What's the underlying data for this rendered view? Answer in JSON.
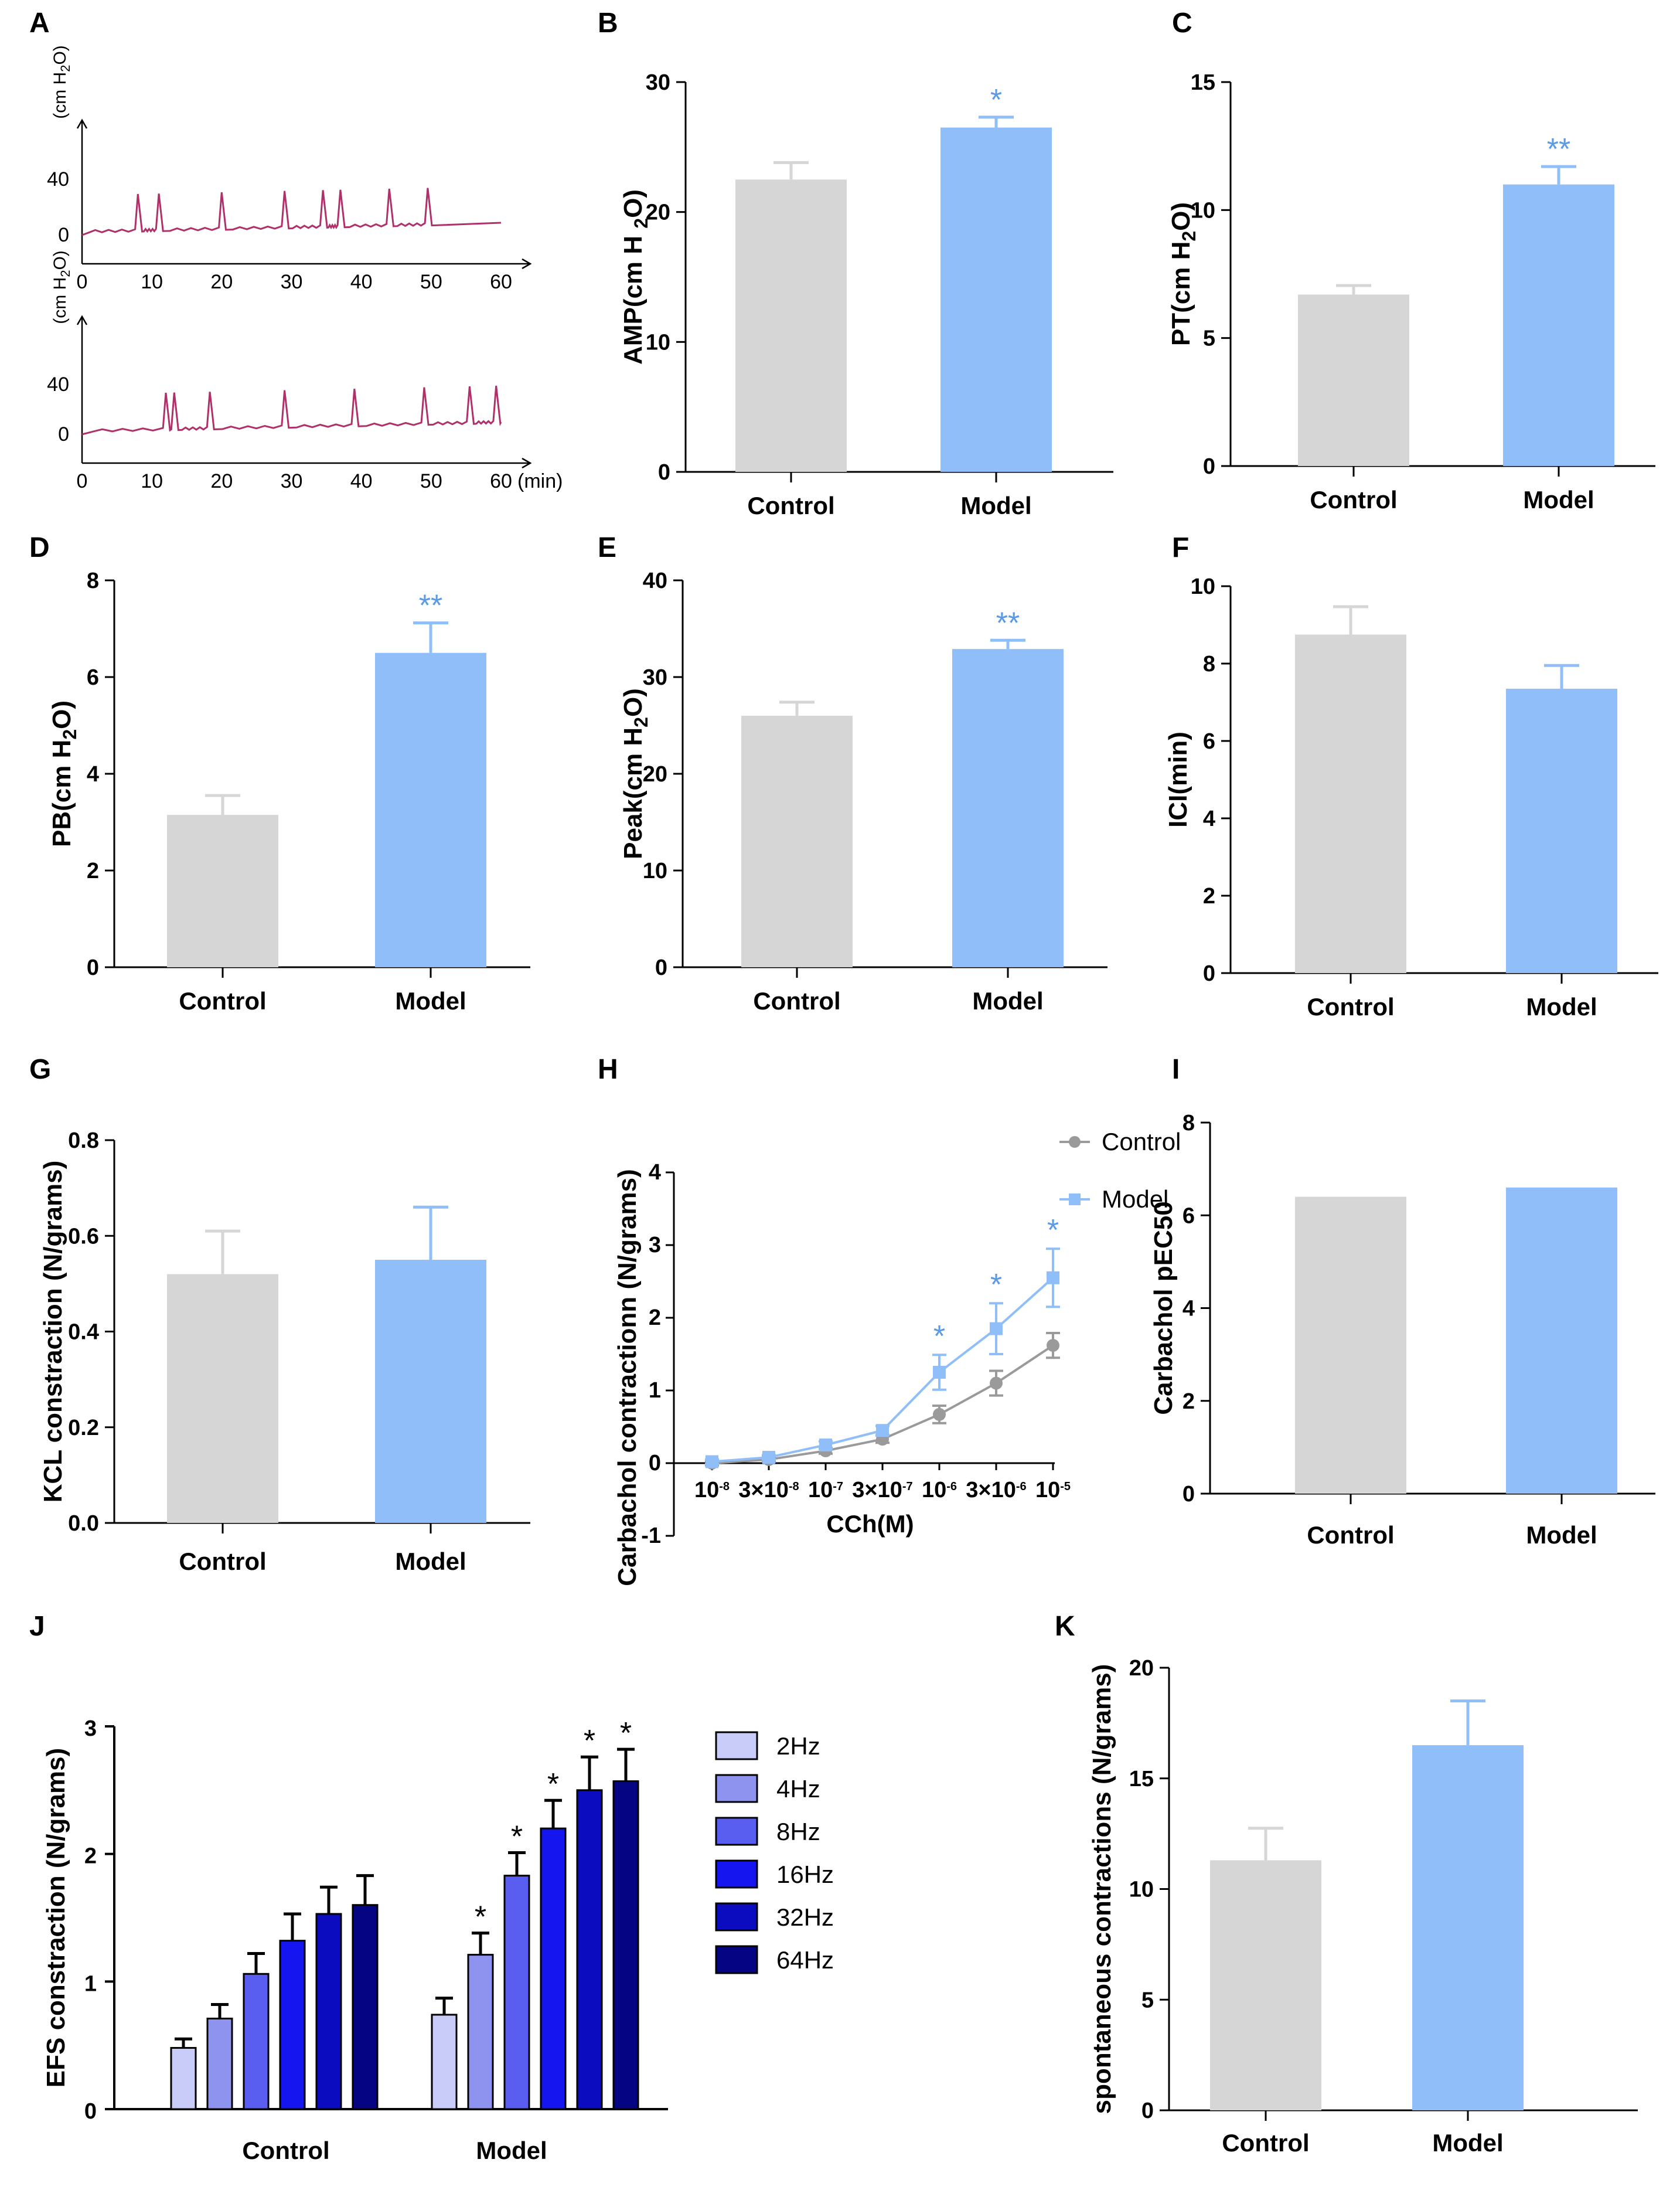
{
  "panel_labels": [
    "A",
    "B",
    "C",
    "D",
    "E",
    "F",
    "G",
    "H",
    "I",
    "J",
    "K"
  ],
  "colors": {
    "control": "#d6d6d6",
    "model": "#8fbef8",
    "sig": "#5b9be6",
    "trace": "#b0306a",
    "h_control": "#9a9a9a",
    "h_model": "#8fbef8",
    "freq": [
      "#c9cbf9",
      "#8f93f0",
      "#5a5ef0",
      "#1515f0",
      "#0b0bbf",
      "#050583"
    ]
  },
  "chart_data": [
    {
      "id": "A",
      "type": "line",
      "title": "",
      "ylabel": "(cm H2O)",
      "ylabel_parts": [
        "(cm H",
        "2",
        "O)"
      ],
      "yticks": [
        "40",
        "0"
      ],
      "xticks": [
        "0",
        "10",
        "20",
        "30",
        "40",
        "50",
        "60"
      ],
      "xunit": "(min)",
      "traces": [
        {
          "name": "top",
          "spikes_min": [
            8,
            11,
            20,
            29,
            34.5,
            37,
            44,
            49.5
          ]
        },
        {
          "name": "bottom",
          "spikes_min": [
            12,
            13.2,
            18.3,
            29,
            39,
            49,
            55.5,
            59.3
          ]
        }
      ]
    },
    {
      "id": "B",
      "type": "bar",
      "categories": [
        "Control",
        "Model"
      ],
      "values": [
        22.5,
        26.5
      ],
      "errors": [
        1.3,
        0.8
      ],
      "sig": [
        "",
        "*"
      ],
      "ylabel": "AMP(cm H 2O)",
      "ylabel_parts": [
        "AMP(cm H ",
        "2",
        "O)"
      ],
      "ylim": [
        0,
        30
      ],
      "yticks": [
        "0",
        "10",
        "20",
        "30"
      ]
    },
    {
      "id": "C",
      "type": "bar",
      "categories": [
        "Control",
        "Model"
      ],
      "values": [
        6.7,
        11.0
      ],
      "errors": [
        0.35,
        0.7
      ],
      "sig": [
        "",
        "**"
      ],
      "ylabel": "PT(cm H2O)",
      "ylabel_parts": [
        "PT(cm H",
        "2",
        "O)"
      ],
      "ylim": [
        0,
        15
      ],
      "yticks": [
        "0",
        "5",
        "10",
        "15"
      ]
    },
    {
      "id": "D",
      "type": "bar",
      "categories": [
        "Control",
        "Model"
      ],
      "values": [
        3.15,
        6.5
      ],
      "errors": [
        0.4,
        0.62
      ],
      "sig": [
        "",
        "**"
      ],
      "ylabel": "PB(cm H2O)",
      "ylabel_parts": [
        "PB(cm H",
        "2",
        "O)"
      ],
      "ylim": [
        0,
        8
      ],
      "yticks": [
        "0",
        "2",
        "4",
        "6",
        "8"
      ]
    },
    {
      "id": "E",
      "type": "bar",
      "categories": [
        "Control",
        "Model"
      ],
      "values": [
        26.0,
        32.9
      ],
      "errors": [
        1.4,
        0.9
      ],
      "sig": [
        "",
        "**"
      ],
      "ylabel": "Peak(cm H2O)",
      "ylabel_parts": [
        "Peak(cm H",
        "2",
        "O)"
      ],
      "ylim": [
        0,
        40
      ],
      "yticks": [
        "0",
        "10",
        "20",
        "30",
        "40"
      ]
    },
    {
      "id": "F",
      "type": "bar",
      "categories": [
        "Control",
        "Model"
      ],
      "values": [
        8.75,
        7.35
      ],
      "errors": [
        0.72,
        0.6
      ],
      "sig": [
        "",
        ""
      ],
      "ylabel": "ICI(min)",
      "ylabel_parts": [
        "ICI(min)",
        "",
        ""
      ],
      "ylim": [
        0,
        10
      ],
      "yticks": [
        "0",
        "2",
        "4",
        "6",
        "8",
        "10"
      ]
    },
    {
      "id": "G",
      "type": "bar",
      "categories": [
        "Control",
        "Model"
      ],
      "values": [
        0.52,
        0.55
      ],
      "errors": [
        0.09,
        0.11
      ],
      "sig": [
        "",
        ""
      ],
      "ylabel": "KCL constraction (N/grams)",
      "ylabel_parts": [
        "KCL constraction (N/grams)",
        "",
        ""
      ],
      "ylim": [
        0,
        0.8
      ],
      "yticks": [
        "0.0",
        "0.2",
        "0.4",
        "0.6",
        "0.8"
      ]
    },
    {
      "id": "H",
      "type": "line",
      "x": [
        "10-8",
        "3×10-8",
        "10-7",
        "3×10-7",
        "10-6",
        "3×10-6",
        "10-5"
      ],
      "x_parts": [
        [
          "10",
          "-8"
        ],
        [
          "3×10",
          "-8"
        ],
        [
          "10",
          "-7"
        ],
        [
          "3×10",
          "-7"
        ],
        [
          "10",
          "-6"
        ],
        [
          "3×10",
          "-6"
        ],
        [
          "10",
          "-5"
        ]
      ],
      "series": [
        {
          "name": "Control",
          "values": [
            0.0,
            0.05,
            0.17,
            0.33,
            0.67,
            1.1,
            1.62
          ],
          "errors": [
            0.03,
            0.03,
            0.04,
            0.05,
            0.12,
            0.17,
            0.17
          ]
        },
        {
          "name": "Model",
          "values": [
            0.02,
            0.08,
            0.25,
            0.45,
            1.25,
            1.85,
            2.55
          ],
          "errors": [
            0.03,
            0.03,
            0.05,
            0.06,
            0.24,
            0.35,
            0.4
          ]
        }
      ],
      "sig": [
        "",
        "",
        "",
        "",
        "*",
        "*",
        "*"
      ],
      "xlabel": "CCh(M)",
      "ylabel": "Carbachol contractionn (N/grams)",
      "ylim": [
        -1,
        4
      ],
      "yticks": [
        "-1",
        "0",
        "1",
        "2",
        "3",
        "4"
      ],
      "legend": [
        "Control",
        "Model"
      ]
    },
    {
      "id": "I",
      "type": "bar",
      "categories": [
        "Control",
        "Model"
      ],
      "values": [
        6.4,
        6.6
      ],
      "errors": [
        0,
        0
      ],
      "sig": [
        "",
        ""
      ],
      "ylabel": "Carbachol pEC50",
      "ylabel_parts": [
        "Carbachol pEC50",
        "",
        ""
      ],
      "ylim": [
        0,
        8
      ],
      "yticks": [
        "0",
        "2",
        "4",
        "6",
        "8"
      ]
    },
    {
      "id": "J",
      "type": "bar",
      "categories": [
        "Control",
        "Model"
      ],
      "series": [
        {
          "name": "2Hz",
          "values": [
            0.48,
            0.74
          ],
          "errors": [
            0.07,
            0.13
          ]
        },
        {
          "name": "4Hz",
          "values": [
            0.71,
            1.21
          ],
          "errors": [
            0.11,
            0.17
          ]
        },
        {
          "name": "8Hz",
          "values": [
            1.06,
            1.83
          ],
          "errors": [
            0.16,
            0.18
          ]
        },
        {
          "name": "16Hz",
          "values": [
            1.32,
            2.2
          ],
          "errors": [
            0.21,
            0.22
          ]
        },
        {
          "name": "32Hz",
          "values": [
            1.53,
            2.5
          ],
          "errors": [
            0.21,
            0.26
          ]
        },
        {
          "name": "64Hz",
          "values": [
            1.6,
            2.57
          ],
          "errors": [
            0.23,
            0.25
          ]
        }
      ],
      "sig_model": [
        "",
        "*",
        "*",
        "*",
        "*",
        "*"
      ],
      "ylabel": "EFS constraction (N/grams)",
      "ylim": [
        0,
        3
      ],
      "yticks": [
        "0",
        "1",
        "2",
        "3"
      ]
    },
    {
      "id": "K",
      "type": "bar",
      "categories": [
        "Control",
        "Model"
      ],
      "values": [
        11.3,
        16.5
      ],
      "errors": [
        1.45,
        2.0
      ],
      "sig": [
        "",
        ""
      ],
      "ylabel": "spontaneous contractions (N/grams)",
      "ylabel_parts": [
        "spontaneous contractions (N/grams)",
        "",
        ""
      ],
      "ylim": [
        0,
        20
      ],
      "yticks": [
        "0",
        "5",
        "10",
        "15",
        "20"
      ]
    }
  ]
}
